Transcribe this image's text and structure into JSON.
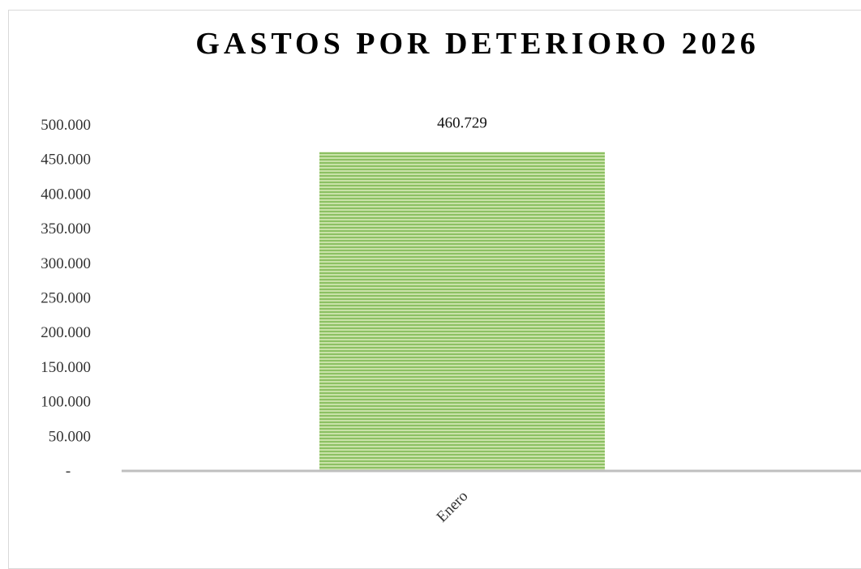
{
  "chart_data": {
    "type": "bar",
    "title": "GASTOS POR DETERIORO 2026",
    "categories": [
      "Enero"
    ],
    "values": [
      460729
    ],
    "data_labels": [
      "460.729"
    ],
    "xlabel": "",
    "ylabel": "",
    "ylim": [
      0,
      500000
    ],
    "y_tick_values": [
      0,
      50000,
      100000,
      150000,
      200000,
      250000,
      300000,
      350000,
      400000,
      450000,
      500000
    ],
    "y_tick_labels": [
      "-",
      "50.000",
      "100.000",
      "150.000",
      "200.000",
      "250.000",
      "300.000",
      "350.000",
      "400.000",
      "450.000",
      "500.000"
    ],
    "grid": false,
    "legend": "none",
    "colors": {
      "bar_fill": "#8cc063",
      "bar_stripe": "#c9e2a8",
      "axis_line": "#bfbfbf"
    }
  }
}
